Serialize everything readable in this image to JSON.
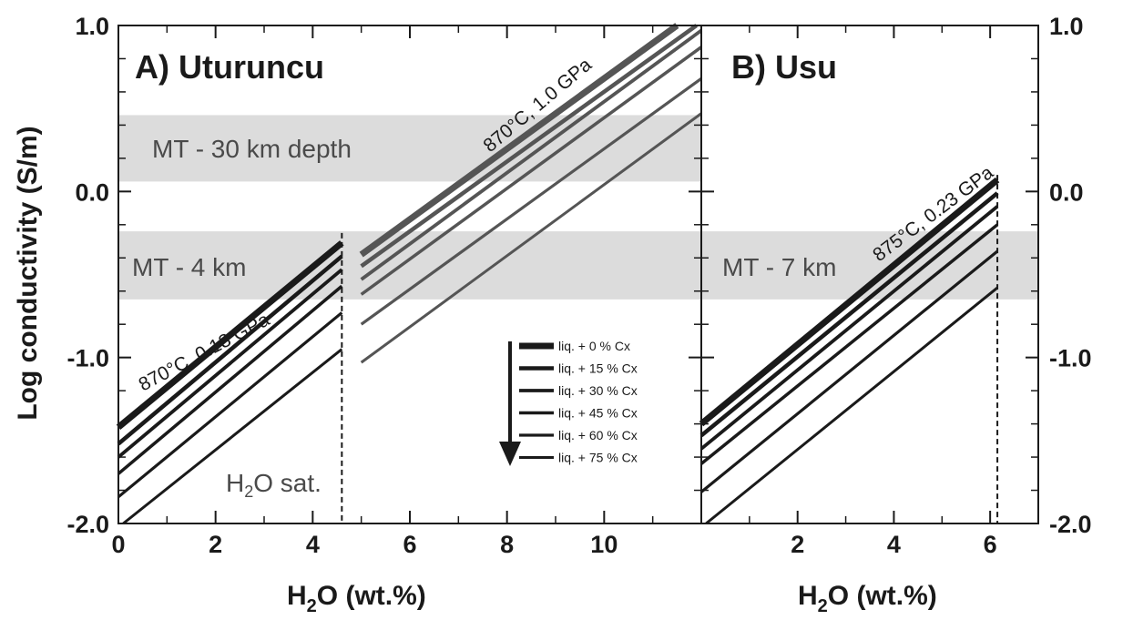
{
  "chart_data": [
    {
      "panel": "A",
      "type": "line",
      "title": "A) Uturuncu",
      "xlabel_main": "H",
      "xlabel_sub": "2",
      "xlabel_rest": "O (wt.%)",
      "ylabel": "Log conductivity (S/m)",
      "xlim": [
        0,
        12
      ],
      "ylim": [
        -2.0,
        1.0
      ],
      "xticks": [
        0,
        2,
        4,
        6,
        8,
        10
      ],
      "yticks": [
        "1.0",
        "0.0",
        "-1.0",
        "-2.0"
      ],
      "bands": [
        {
          "label": "MT - 30 km depth",
          "ymin": 0.06,
          "ymax": 0.46
        },
        {
          "label": "MT - 4 km",
          "ymin": -0.65,
          "ymax": -0.24
        }
      ],
      "saturation": {
        "x": 4.6,
        "label_main": "H",
        "label_sub": "2",
        "label_rest": "O sat."
      },
      "series": [
        {
          "condition": "870°C, 0.13 GPa",
          "segments": [
            {
              "x": [
                0,
                4.6
              ],
              "y": [
                -1.42,
                -0.31
              ]
            },
            {
              "x": [
                0,
                4.6
              ],
              "y": [
                -1.52,
                -0.39
              ]
            },
            {
              "x": [
                0,
                4.6
              ],
              "y": [
                -1.6,
                -0.47
              ]
            },
            {
              "x": [
                0,
                4.6
              ],
              "y": [
                -1.7,
                -0.57
              ]
            },
            {
              "x": [
                0,
                4.6
              ],
              "y": [
                -1.84,
                -0.73
              ]
            },
            {
              "x": [
                0.1,
                4.6
              ],
              "y": [
                -2.0,
                -0.95
              ]
            }
          ]
        },
        {
          "condition": "870°C, 1.0 GPa",
          "segments": [
            {
              "x": [
                5.0,
                11.5
              ],
              "y": [
                -0.38,
                1.0
              ]
            },
            {
              "x": [
                5.0,
                11.9
              ],
              "y": [
                -0.45,
                1.0
              ]
            },
            {
              "x": [
                5.0,
                12.0
              ],
              "y": [
                -0.53,
                0.97
              ]
            },
            {
              "x": [
                5.0,
                12.0
              ],
              "y": [
                -0.62,
                0.87
              ]
            },
            {
              "x": [
                5.0,
                12.0
              ],
              "y": [
                -0.8,
                0.68
              ]
            },
            {
              "x": [
                5.0,
                12.0
              ],
              "y": [
                -1.03,
                0.47
              ]
            }
          ]
        }
      ]
    },
    {
      "panel": "B",
      "type": "line",
      "title": "B) Usu",
      "xlabel_main": "H",
      "xlabel_sub": "2",
      "xlabel_rest": "O (wt.%)",
      "xlim": [
        0,
        7
      ],
      "ylim": [
        -2.0,
        1.0
      ],
      "xticks": [
        2,
        4,
        6
      ],
      "yticks": [
        "1.0",
        "0.0",
        "-1.0",
        "-2.0"
      ],
      "bands": [
        {
          "label": "MT - 7 km",
          "ymin": -0.65,
          "ymax": -0.24
        }
      ],
      "saturation": {
        "x": 6.15
      },
      "series": [
        {
          "condition": "875°C, 0.23 GPa",
          "segments": [
            {
              "x": [
                0,
                6.15
              ],
              "y": [
                -1.4,
                0.07
              ]
            },
            {
              "x": [
                0,
                6.15
              ],
              "y": [
                -1.47,
                -0.01
              ]
            },
            {
              "x": [
                0,
                6.15
              ],
              "y": [
                -1.55,
                -0.09
              ]
            },
            {
              "x": [
                0,
                6.15
              ],
              "y": [
                -1.64,
                -0.2
              ]
            },
            {
              "x": [
                0,
                6.15
              ],
              "y": [
                -1.81,
                -0.36
              ]
            },
            {
              "x": [
                0.1,
                6.15
              ],
              "y": [
                -2.0,
                -0.58
              ]
            }
          ]
        }
      ]
    }
  ],
  "legend": {
    "entries": [
      "liq. + 0 % Cx",
      "liq. + 15 % Cx",
      "liq. + 30 % Cx",
      "liq. + 45 % Cx",
      "liq. + 60 % Cx",
      "liq. + 75 % Cx"
    ]
  },
  "colors": {
    "band": "#dcdcdc",
    "low_pressure_lines": "#1a1a1a",
    "high_pressure_lines": "#555555",
    "axis": "#1a1a1a"
  }
}
